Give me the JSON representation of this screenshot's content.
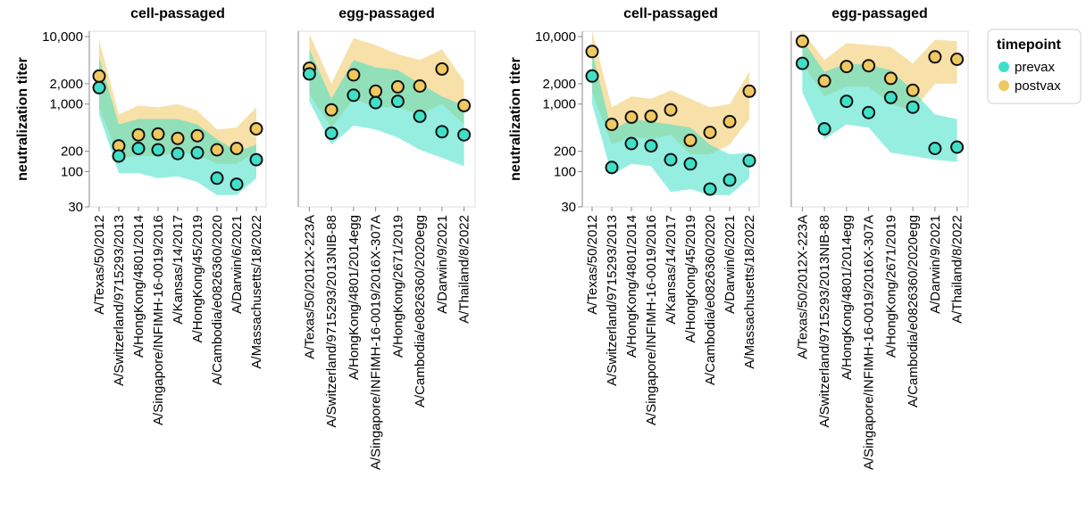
{
  "legend": {
    "title": "timepoint",
    "items": [
      {
        "key": "prevax",
        "label": "prevax",
        "color": "#40e0c8"
      },
      {
        "key": "postvax",
        "label": "postvax",
        "color": "#f0c860"
      }
    ]
  },
  "chart_data": [
    {
      "type": "scatter",
      "title": "cell-passaged",
      "ylabel": "neutralization titer",
      "yscale": "log",
      "ylim": [
        30,
        12000
      ],
      "yticks": [
        30,
        100,
        200,
        1000,
        2000,
        10000
      ],
      "ytick_labels": [
        "30",
        "100",
        "200",
        "1,000",
        "2,000",
        "10,000"
      ],
      "categories": [
        "A/Texas/50/2012",
        "A/Switzerland/9715293/2013",
        "A/HongKong/4801/2014",
        "A/Singapore/INFIMH-16-0019/2016",
        "A/Kansas/14/2017",
        "A/HongKong/45/2019",
        "A/Cambodia/e0826360/2020",
        "A/Darwin/6/2021",
        "A/Massachusetts/18/2022"
      ],
      "series": [
        {
          "name": "prevax",
          "median": [
            1750,
            170,
            220,
            210,
            185,
            190,
            80,
            65,
            150
          ],
          "lower": [
            700,
            95,
            95,
            80,
            85,
            70,
            45,
            45,
            80
          ],
          "upper": [
            5000,
            500,
            600,
            600,
            600,
            500,
            300,
            200,
            250
          ]
        },
        {
          "name": "postvax",
          "median": [
            2600,
            240,
            350,
            360,
            310,
            340,
            210,
            220,
            430
          ],
          "lower": [
            900,
            160,
            170,
            170,
            190,
            180,
            130,
            130,
            200
          ],
          "upper": [
            9000,
            700,
            950,
            900,
            1000,
            800,
            420,
            450,
            900
          ]
        }
      ]
    },
    {
      "type": "scatter",
      "title": "egg-passaged",
      "ylabel": "",
      "yscale": "log",
      "ylim": [
        30,
        12000
      ],
      "yticks": [],
      "ytick_labels": [],
      "categories": [
        "A/Texas/50/2012X-223A",
        "A/Switzerland/9715293/2013NIB-88",
        "A/HongKong/4801/2014egg",
        "A/Singapore/INFIMH-16-0019/2016X-307A",
        "A/HongKong/2671/2019",
        "A/Cambodia/e0826360/2020egg",
        "A/Darwin/9/2021",
        "A/Thailand/8/2022"
      ],
      "series": [
        {
          "name": "prevax",
          "median": [
            2800,
            370,
            1350,
            1050,
            1100,
            660,
            390,
            350
          ],
          "lower": [
            1100,
            250,
            480,
            420,
            320,
            210,
            160,
            120
          ],
          "upper": [
            6500,
            1200,
            4500,
            3500,
            3200,
            2000,
            1300,
            950
          ]
        },
        {
          "name": "postvax",
          "median": [
            3400,
            820,
            2700,
            1550,
            1800,
            1850,
            3300,
            950
          ],
          "lower": [
            1400,
            450,
            1200,
            900,
            900,
            700,
            1000,
            500
          ],
          "upper": [
            11000,
            2000,
            9500,
            7500,
            5500,
            4500,
            6500,
            2200
          ]
        }
      ]
    },
    {
      "type": "scatter",
      "title": "cell-passaged",
      "ylabel": "neutralization titer",
      "yscale": "log",
      "ylim": [
        30,
        12000
      ],
      "yticks": [
        30,
        100,
        200,
        1000,
        2000,
        10000
      ],
      "ytick_labels": [
        "30",
        "100",
        "200",
        "1,000",
        "2,000",
        "10,000"
      ],
      "categories": [
        "A/Texas/50/2012",
        "A/Switzerland/9715293/2013",
        "A/HongKong/4801/2014",
        "A/Singapore/INFIMH-16-0019/2016",
        "A/Kansas/14/2017",
        "A/HongKong/45/2019",
        "A/Cambodia/e0826360/2020",
        "A/Darwin/6/2021",
        "A/Massachusetts/18/2022"
      ],
      "series": [
        {
          "name": "prevax",
          "median": [
            2600,
            115,
            260,
            240,
            150,
            130,
            55,
            75,
            145
          ],
          "lower": [
            1000,
            90,
            130,
            120,
            50,
            55,
            45,
            45,
            80
          ],
          "upper": [
            6000,
            400,
            600,
            550,
            500,
            450,
            250,
            180,
            190
          ]
        },
        {
          "name": "postvax",
          "median": [
            6000,
            500,
            640,
            660,
            820,
            290,
            380,
            550,
            1550
          ],
          "lower": [
            1500,
            250,
            330,
            300,
            350,
            180,
            180,
            250,
            600
          ],
          "upper": [
            12000,
            900,
            1300,
            1200,
            1600,
            1200,
            900,
            1000,
            3000
          ]
        }
      ]
    },
    {
      "type": "scatter",
      "title": "egg-passaged",
      "ylabel": "",
      "yscale": "log",
      "ylim": [
        30,
        12000
      ],
      "yticks": [],
      "ytick_labels": [],
      "categories": [
        "A/Texas/50/2012X-223A",
        "A/Switzerland/9715293/2013NIB-88",
        "A/HongKong/4801/2014egg",
        "A/Singapore/INFIMH-16-0019/2016X-307A",
        "A/HongKong/2671/2019",
        "A/Cambodia/e0826360/2020egg",
        "A/Darwin/9/2021",
        "A/Thailand/8/2022"
      ],
      "series": [
        {
          "name": "prevax",
          "median": [
            4000,
            430,
            1100,
            750,
            1250,
            900,
            220,
            230
          ],
          "lower": [
            1500,
            300,
            500,
            450,
            190,
            170,
            150,
            140
          ],
          "upper": [
            9000,
            3000,
            4000,
            3800,
            3200,
            1600,
            700,
            600
          ]
        },
        {
          "name": "postvax",
          "median": [
            8500,
            2200,
            3600,
            3700,
            2400,
            1600,
            5000,
            4600
          ],
          "lower": [
            4000,
            1300,
            1800,
            1800,
            1000,
            800,
            2000,
            2000
          ],
          "upper": [
            12000,
            4500,
            8000,
            7500,
            7000,
            4000,
            9000,
            8500
          ]
        }
      ]
    }
  ]
}
